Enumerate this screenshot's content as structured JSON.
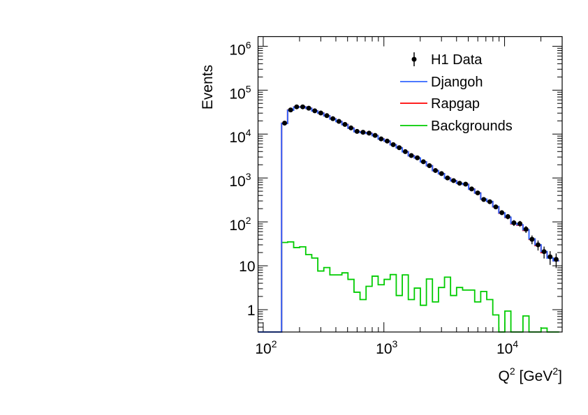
{
  "chart_data": {
    "type": "histogram",
    "title": "",
    "xlabel": "Q",
    "xlabel_sup": "2",
    "xlabel_unit": " [GeV",
    "xlabel_unit_sup": "2",
    "xlabel_close": "]",
    "ylabel": "Events",
    "xscale": "log",
    "yscale": "log",
    "xlim": [
      90.6,
      30000
    ],
    "ylim": [
      0.31,
      1660000
    ],
    "bin_edge_first": 142,
    "bin_log_width": 0.05,
    "x_ticks": [
      {
        "value": 100,
        "base": "10",
        "exp": "2"
      },
      {
        "value": 1000,
        "base": "10",
        "exp": "3"
      },
      {
        "value": 10000,
        "base": "10",
        "exp": "4"
      }
    ],
    "y_ticks": [
      {
        "value": 1,
        "base": "1",
        "exp": ""
      },
      {
        "value": 10,
        "base": "10",
        "exp": ""
      },
      {
        "value": 100,
        "base": "10",
        "exp": "2"
      },
      {
        "value": 1000,
        "base": "10",
        "exp": "3"
      },
      {
        "value": 10000,
        "base": "10",
        "exp": "4"
      },
      {
        "value": 100000,
        "base": "10",
        "exp": "5"
      },
      {
        "value": 1000000,
        "base": "10",
        "exp": "6"
      }
    ],
    "legend_position": "top-right",
    "series": [
      {
        "name": "H1 Data",
        "kind": "points",
        "color": "#000000",
        "values": [
          17800,
          35500,
          41700,
          41700,
          38900,
          33900,
          30200,
          26300,
          22400,
          19500,
          16600,
          13800,
          11500,
          11000,
          10500,
          9330,
          7760,
          6920,
          5750,
          4900,
          3980,
          3240,
          2880,
          2340,
          1910,
          1480,
          1260,
          1000,
          871,
          759,
          724,
          562,
          457,
          324,
          288,
          219,
          162,
          132,
          95,
          91,
          68,
          40,
          30,
          21,
          16,
          14
        ]
      },
      {
        "name": "Djangoh",
        "kind": "step",
        "color": "#3366ff",
        "values": [
          17500,
          35000,
          41000,
          41500,
          38500,
          33500,
          30000,
          26000,
          22000,
          19300,
          16400,
          13600,
          11300,
          10800,
          10300,
          9200,
          7700,
          6900,
          5700,
          4850,
          3950,
          3200,
          2850,
          2320,
          1900,
          1470,
          1250,
          990,
          860,
          750,
          715,
          555,
          455,
          330,
          292,
          222,
          160,
          128,
          92,
          86,
          66,
          41,
          30,
          21,
          15,
          13
        ]
      },
      {
        "name": "Rapgap",
        "kind": "step",
        "color": "#ff0000",
        "values": [
          17600,
          35300,
          41400,
          41600,
          38700,
          33700,
          30100,
          26100,
          22200,
          19400,
          16500,
          13700,
          11400,
          10900,
          10400,
          9250,
          7720,
          6900,
          5720,
          4870,
          3960,
          3210,
          2860,
          2330,
          1900,
          1470,
          1250,
          995,
          865,
          752,
          718,
          558,
          455,
          328,
          290,
          220,
          158,
          126,
          90,
          84,
          64,
          40,
          29,
          20,
          15,
          13
        ]
      },
      {
        "name": "Backgrounds",
        "kind": "step",
        "color": "#00cc00",
        "values": [
          34,
          35,
          26,
          27,
          18,
          15,
          7.6,
          9.1,
          6.2,
          6.2,
          6.9,
          4.9,
          2.5,
          1.7,
          3.4,
          5.8,
          3.7,
          4.9,
          6.3,
          2.1,
          6.2,
          1.7,
          3.1,
          1.26,
          5.0,
          1.5,
          3.2,
          5.5,
          2.1,
          3.2,
          2.8,
          2.8,
          1.5,
          2.6,
          1.7,
          0.76,
          0,
          0.93,
          0,
          0,
          0.72,
          0,
          0,
          0.38,
          0,
          0
        ]
      }
    ]
  }
}
